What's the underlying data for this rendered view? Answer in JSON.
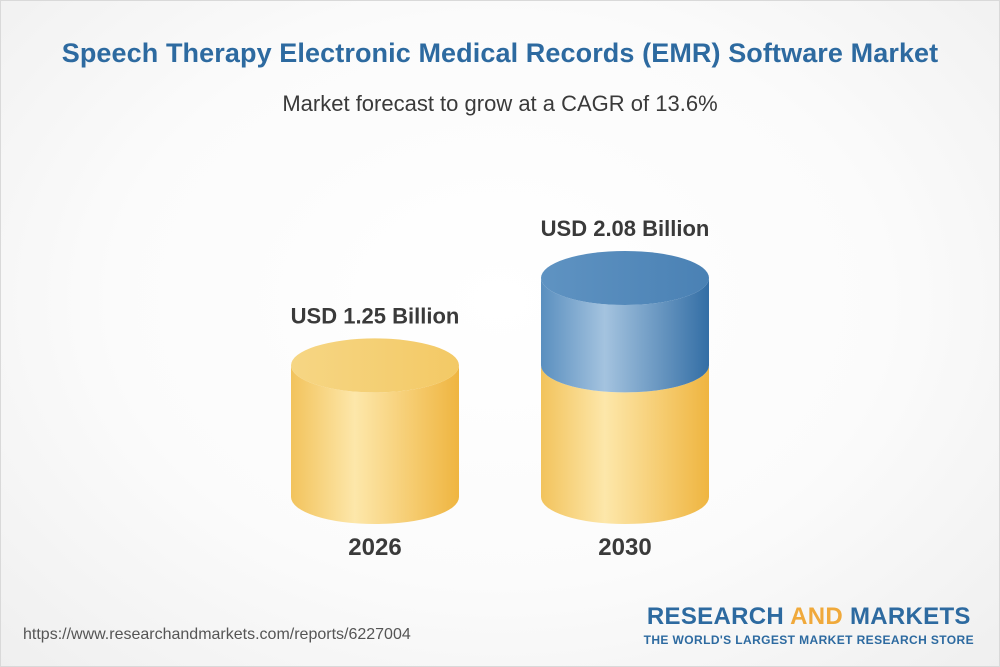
{
  "header": {
    "title": "Speech Therapy Electronic Medical Records (EMR) Software Market",
    "subtitle": "Market forecast to grow at a CAGR of 13.6%"
  },
  "chart_data": {
    "type": "bar",
    "style": "3d-cylinder",
    "categories": [
      "2026",
      "2030"
    ],
    "values": [
      1.25,
      2.08
    ],
    "value_labels": [
      "USD 1.25 Billion",
      "USD 2.08 Billion"
    ],
    "unit": "USD Billion",
    "title": "Speech Therapy Electronic Medical Records (EMR) Software Market",
    "subtitle": "Market forecast to grow at a CAGR of 13.6%",
    "cagr_percent": 13.6,
    "xlabel": "",
    "ylabel": "",
    "grid": false,
    "colors": {
      "base": "#f3c25a",
      "base_light": "#fde6a6",
      "growth": "#4f86b8",
      "growth_light": "#9dbfdd"
    }
  },
  "footer": {
    "source_url": "https://www.researchandmarkets.com/reports/6227004",
    "brand_part1": "RESEARCH ",
    "brand_part2": "AND",
    "brand_part3": " MARKETS",
    "brand_tagline": "THE WORLD'S LARGEST MARKET RESEARCH STORE"
  }
}
